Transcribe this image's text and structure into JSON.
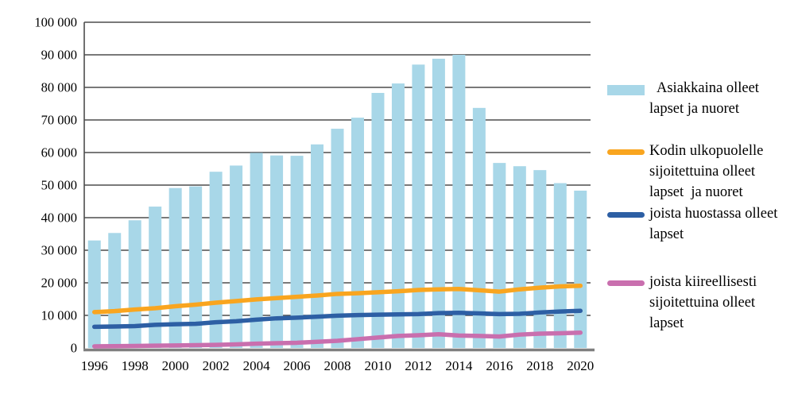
{
  "colors": {
    "bar": "#a8d7e8",
    "orange": "#f9a51f",
    "blue": "#2d5fa4",
    "pink": "#c96fae",
    "gridline": "#4d4d4d",
    "axis": "#7f7f7f",
    "text": "#000000"
  },
  "legend": {
    "items": [
      {
        "type": "bar",
        "color": "#a8d7e8",
        "lines": [
          "Asiakkaina olleet",
          "lapset ja nuoret"
        ]
      },
      {
        "type": "line",
        "color": "#f9a51f",
        "lines": [
          "Kodin ulkopuolelle",
          "sijoitettuina olleet",
          "lapset  ja nuoret"
        ]
      },
      {
        "type": "line",
        "color": "#2d5fa4",
        "lines": [
          "joista huostassa olleet",
          "lapset"
        ]
      },
      {
        "type": "line",
        "color": "#c96fae",
        "lines": [
          "joista kiireellisesti",
          "sijoitettuina olleet",
          "lapset"
        ]
      }
    ]
  },
  "chart_data": {
    "type": "bar",
    "subtype": "combo-bar-and-lines",
    "x": [
      1996,
      1997,
      1998,
      1999,
      2000,
      2001,
      2002,
      2003,
      2004,
      2005,
      2006,
      2007,
      2008,
      2009,
      2010,
      2011,
      2012,
      2013,
      2014,
      2015,
      2016,
      2017,
      2018,
      2019,
      2020
    ],
    "x_tick_step": 2,
    "y_ticks": [
      0,
      10000,
      20000,
      30000,
      40000,
      50000,
      60000,
      70000,
      80000,
      90000,
      100000
    ],
    "y_tick_labels": [
      "0",
      "10 000",
      "20 000",
      "30 000",
      "40 000",
      "50 000",
      "60 000",
      "70 000",
      "80 000",
      "90 000",
      "100 000"
    ],
    "ylim": [
      0,
      100000
    ],
    "grid": true,
    "legend_position": "right",
    "title": "",
    "xlabel": "",
    "ylabel": "",
    "series": [
      {
        "id": "asiakkaina",
        "name": "Asiakkaina olleet lapset ja nuoret",
        "type": "bar",
        "color": "#a8d7e8",
        "values": [
          33000,
          35300,
          39200,
          43400,
          49100,
          49600,
          54100,
          56000,
          59900,
          59100,
          59000,
          62500,
          67300,
          70700,
          78300,
          81200,
          87000,
          88800,
          90000,
          73700,
          56800,
          55800,
          54600,
          50600,
          48300
        ]
      },
      {
        "id": "kodin-ulkopuolelle",
        "name": "Kodin ulkopuolelle sijoitettuina olleet lapset ja nuoret",
        "type": "line",
        "color": "#f9a51f",
        "values": [
          11000,
          11300,
          11800,
          12200,
          12800,
          13300,
          13900,
          14400,
          14900,
          15300,
          15700,
          16100,
          16600,
          16800,
          17100,
          17400,
          17800,
          18000,
          18100,
          17700,
          17300,
          18000,
          18500,
          18900,
          19100
        ]
      },
      {
        "id": "huostassa",
        "name": "joista huostassa olleet lapset",
        "type": "line",
        "color": "#2d5fa4",
        "values": [
          6500,
          6600,
          6700,
          7100,
          7300,
          7400,
          7900,
          8200,
          8700,
          9100,
          9300,
          9600,
          9900,
          10100,
          10200,
          10300,
          10400,
          10700,
          10800,
          10600,
          10400,
          10500,
          10900,
          11200,
          11400
        ]
      },
      {
        "id": "kiireellisesti",
        "name": "joista kiireellisesti sijoitettuina olleet lapset",
        "type": "line",
        "color": "#c96fae",
        "values": [
          500,
          550,
          600,
          700,
          750,
          850,
          950,
          1100,
          1300,
          1450,
          1600,
          1900,
          2200,
          2700,
          3200,
          3700,
          3900,
          4200,
          3800,
          3700,
          3500,
          4100,
          4400,
          4500,
          4700
        ]
      }
    ]
  }
}
